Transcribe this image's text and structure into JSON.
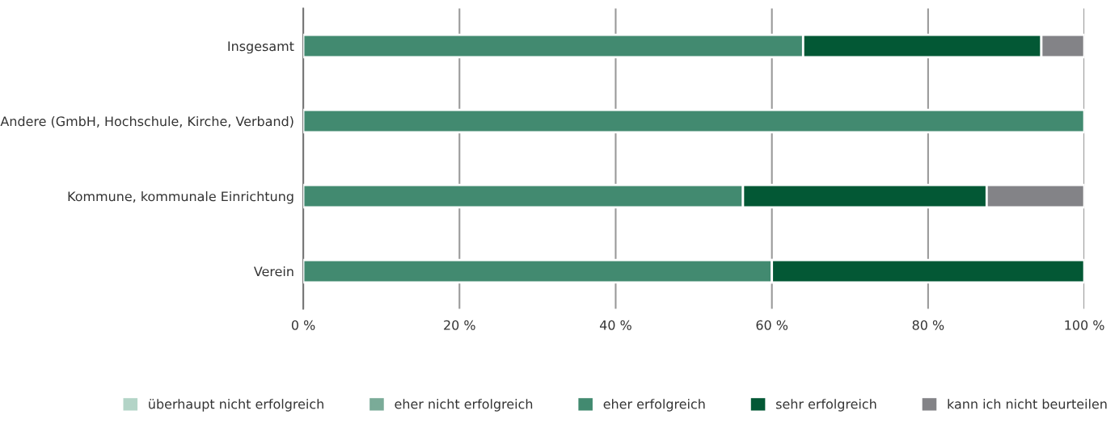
{
  "chart_data": {
    "type": "bar",
    "orientation": "horizontal",
    "stacked": true,
    "categories": [
      "Insgesamt",
      "Andere (GmbH, Hochschule, Kirche, Verband)",
      "Kommune, kommunale Einrichtung",
      "Verein"
    ],
    "series": [
      {
        "name": "überhaupt nicht erfolgreich",
        "color": "#b3d4c7",
        "values": [
          0,
          0,
          0,
          0
        ]
      },
      {
        "name": "eher nicht erfolgreich",
        "color": "#7aab98",
        "values": [
          0,
          0,
          0,
          0
        ]
      },
      {
        "name": "eher erfolgreich",
        "color": "#428a70",
        "values": [
          64,
          100,
          56.3,
          60
        ]
      },
      {
        "name": "sehr erfolgreich",
        "color": "#035835",
        "values": [
          30.5,
          0,
          31.2,
          40
        ]
      },
      {
        "name": "kann ich nicht beurteilen",
        "color": "#838387",
        "values": [
          5.5,
          0,
          12.5,
          0
        ]
      }
    ],
    "xlim": [
      0,
      100
    ],
    "xticks": [
      {
        "value": 0,
        "label": "0 %"
      },
      {
        "value": 20,
        "label": "20 %"
      },
      {
        "value": 40,
        "label": "40 %"
      },
      {
        "value": 60,
        "label": "60 %"
      },
      {
        "value": 80,
        "label": "80 %"
      },
      {
        "value": 100,
        "label": "100 %"
      }
    ],
    "grid": "x",
    "legend": "bottom"
  }
}
